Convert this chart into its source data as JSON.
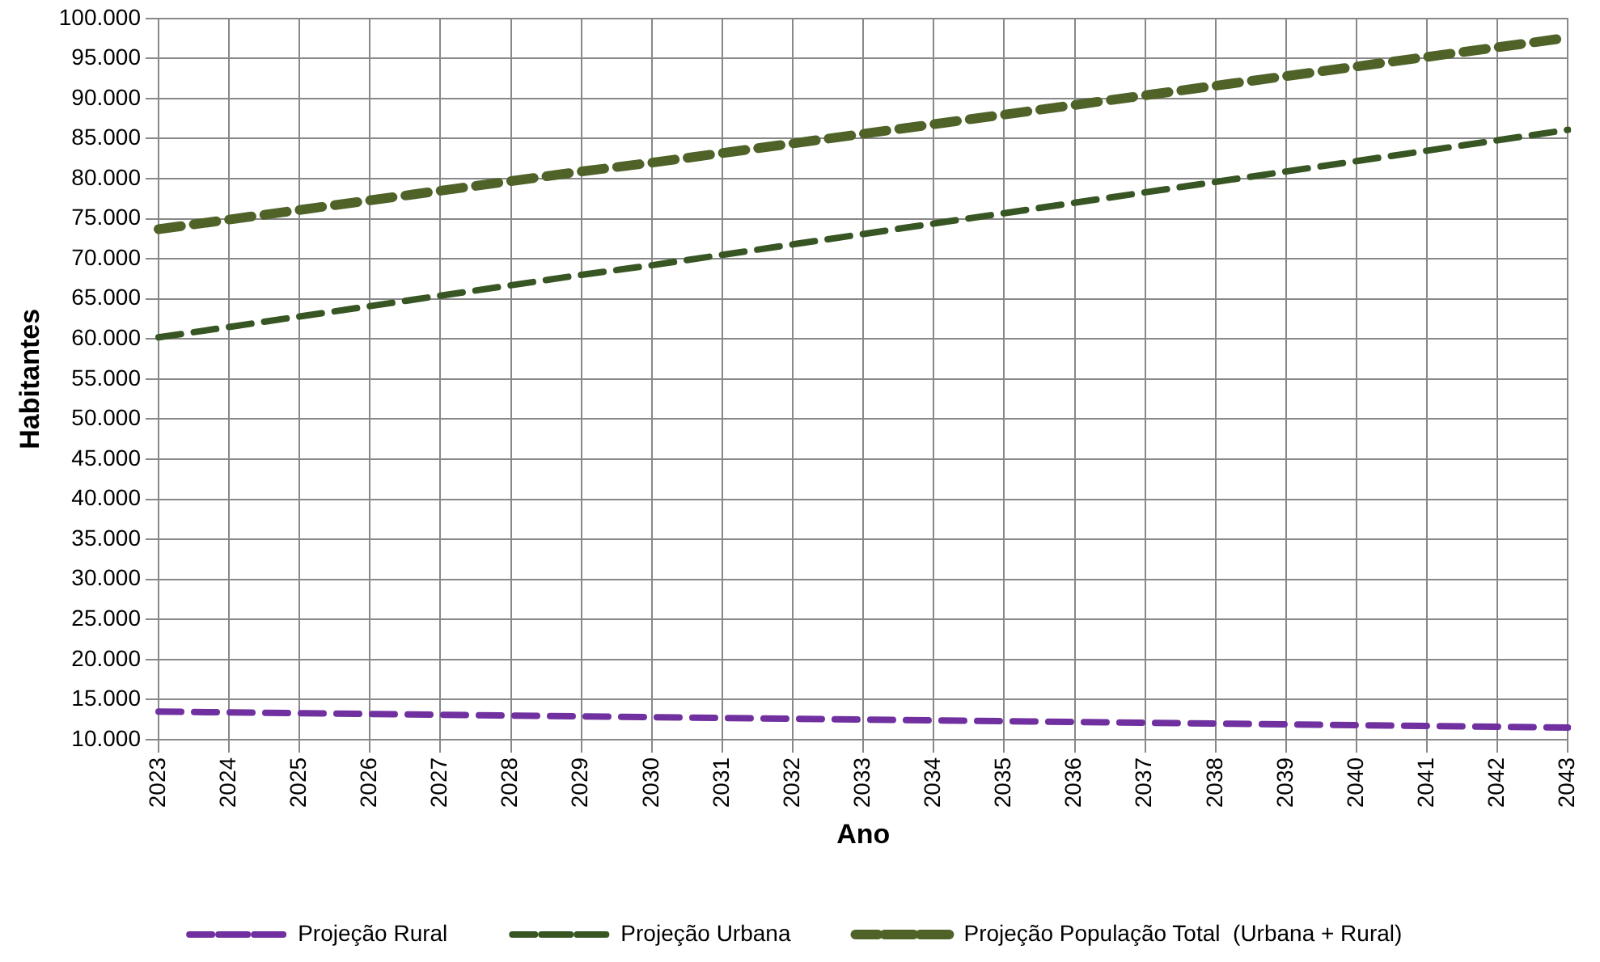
{
  "chart_data": {
    "type": "line",
    "xlabel": "Ano",
    "ylabel": "Habitantes",
    "categories": [
      "2023",
      "2024",
      "2025",
      "2026",
      "2027",
      "2028",
      "2029",
      "2030",
      "2031",
      "2032",
      "2033",
      "2034",
      "2035",
      "2036",
      "2037",
      "2038",
      "2039",
      "2040",
      "2041",
      "2042",
      "2043"
    ],
    "series": [
      {
        "name": "Projeção Rural",
        "color": "#7030a0",
        "line_style": "dashed",
        "values": [
          13500,
          13400,
          13300,
          13200,
          13100,
          13000,
          12900,
          12800,
          12700,
          12600,
          12500,
          12400,
          12300,
          12200,
          12100,
          12000,
          11900,
          11800,
          11700,
          11600,
          11500
        ]
      },
      {
        "name": "Projeção Urbana",
        "color": "#375623",
        "line_style": "dashed",
        "values": [
          60200,
          61500,
          62800,
          64100,
          65400,
          66700,
          68000,
          69200,
          70500,
          71800,
          73100,
          74400,
          75700,
          77000,
          78300,
          79600,
          80900,
          82200,
          83500,
          84800,
          86100
        ]
      },
      {
        "name": "Projeção População Total  (Urbana + Rural)",
        "color": "#4f6228",
        "line_style": "dashed",
        "values": [
          73700,
          74900,
          76100,
          77300,
          78500,
          79700,
          80900,
          82000,
          83200,
          84400,
          85600,
          86800,
          88000,
          89200,
          90400,
          91600,
          92800,
          94000,
          95200,
          96400,
          97600
        ]
      }
    ],
    "ylim": [
      10000,
      100000
    ],
    "yticks": [
      {
        "value": 10000,
        "label": "10.000"
      },
      {
        "value": 15000,
        "label": "15.000"
      },
      {
        "value": 20000,
        "label": "20.000"
      },
      {
        "value": 25000,
        "label": "25.000"
      },
      {
        "value": 30000,
        "label": "30.000"
      },
      {
        "value": 35000,
        "label": "35.000"
      },
      {
        "value": 40000,
        "label": "40.000"
      },
      {
        "value": 45000,
        "label": "45.000"
      },
      {
        "value": 50000,
        "label": "50.000"
      },
      {
        "value": 55000,
        "label": "55.000"
      },
      {
        "value": 60000,
        "label": "60.000"
      },
      {
        "value": 65000,
        "label": "65.000"
      },
      {
        "value": 70000,
        "label": "70.000"
      },
      {
        "value": 75000,
        "label": "75.000"
      },
      {
        "value": 80000,
        "label": "80.000"
      },
      {
        "value": 85000,
        "label": "85.000"
      },
      {
        "value": 90000,
        "label": "90.000"
      },
      {
        "value": 95000,
        "label": "95.000"
      },
      {
        "value": 100000,
        "label": "100.000"
      }
    ],
    "grid": true,
    "legend": "bottom",
    "marker": "none"
  }
}
